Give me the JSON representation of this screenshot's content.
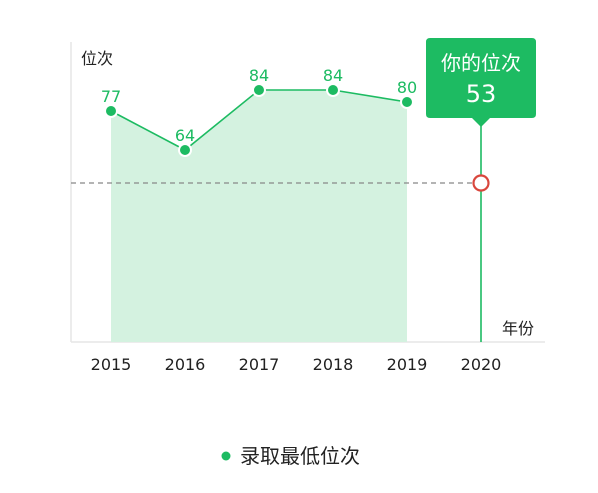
{
  "chart_data": {
    "type": "line",
    "x_axis_label": "年份",
    "y_axis_label": "位次",
    "categories": [
      "2015",
      "2016",
      "2017",
      "2018",
      "2019",
      "2020"
    ],
    "series": [
      {
        "name": "录取最低位次",
        "x": [
          "2015",
          "2016",
          "2017",
          "2018",
          "2019"
        ],
        "values": [
          77,
          64,
          84,
          84,
          80
        ]
      }
    ],
    "ylim": [
      0,
      100
    ],
    "area_fill": true,
    "grid": false,
    "legend_position": "bottom",
    "your_rank": {
      "title": "你的位次",
      "year": "2020",
      "value": 53
    },
    "colors": {
      "line": "#1dbb62",
      "area": "#d4f2e0",
      "callout": "#1dbb62",
      "marker_ring": "#d9473d",
      "reference_line": "#888888",
      "axis": "#e6e6e6"
    }
  }
}
